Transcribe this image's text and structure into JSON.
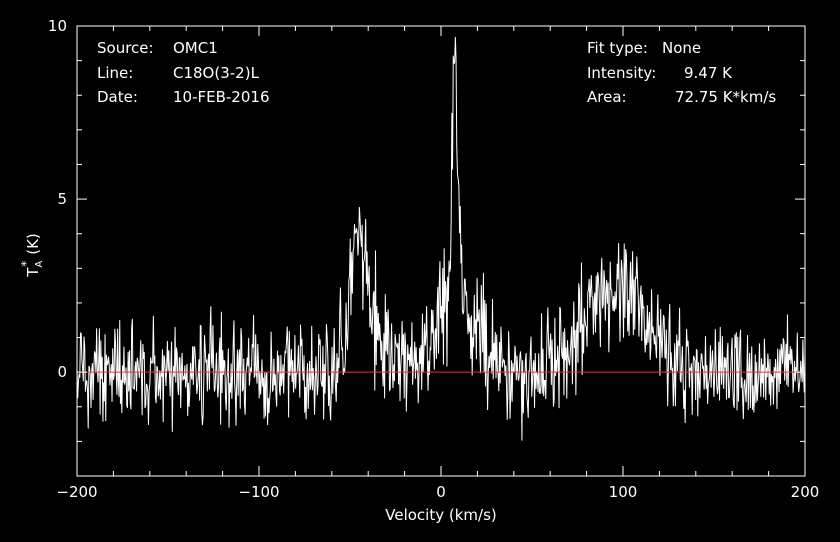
{
  "chart_data": {
    "type": "line",
    "xlabel": "Velocity (km/s)",
    "ylabel_main": "T",
    "ylabel_sup": "*",
    "ylabel_sub": "A",
    "ylabel_unit": "(K)",
    "xlim": [
      -200,
      200
    ],
    "ylim": [
      -3,
      10
    ],
    "xticks": [
      -200,
      -100,
      0,
      100,
      200
    ],
    "yticks": [
      0,
      5,
      10
    ],
    "baseline": 0,
    "colors": {
      "background": "#000000",
      "axes": "#ffffff",
      "spectrum": "#ffffff",
      "baseline": "#ff2a2a"
    },
    "series": [
      {
        "noise_rms": 0.75,
        "x_start": -200,
        "x_end": 200,
        "n_channels": 1040,
        "components": [
          {
            "center": 7.5,
            "amplitude": 7.9,
            "width": 1.6,
            "shape": "lorentzian"
          },
          {
            "center": 7.5,
            "amplitude": 1.6,
            "width": 12,
            "shape": "gaussian"
          },
          {
            "center": -45,
            "amplitude": 3.7,
            "width": 4.5,
            "shape": "gaussian"
          },
          {
            "center": -38,
            "amplitude": 0.8,
            "width": 8,
            "shape": "gaussian"
          },
          {
            "center": 93,
            "amplitude": 2.3,
            "width": 14,
            "shape": "gaussian"
          },
          {
            "center": 112,
            "amplitude": 0.7,
            "width": 12,
            "shape": "gaussian"
          }
        ]
      }
    ]
  },
  "header": {
    "source_label": "Source:",
    "source_value": "OMC1",
    "line_label": "Line:",
    "line_value": "C18O(3-2)L",
    "date_label": "Date:",
    "date_value": "10-FEB-2016",
    "fit_label": "Fit type:",
    "fit_value": "None",
    "intensity_label": "Intensity:",
    "intensity_value": "9.47 K",
    "area_label": "Area:",
    "area_value": "72.75 K*km/s"
  }
}
